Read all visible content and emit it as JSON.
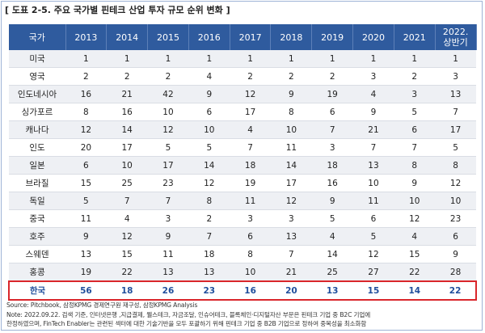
{
  "title": "[ 도표 2-5. 주요 국가별 핀테크 산업 투자 규모 순위 변화 ]",
  "table": {
    "header": [
      "국가",
      "2013",
      "2014",
      "2015",
      "2016",
      "2017",
      "2018",
      "2019",
      "2020",
      "2021",
      "2022.\n상반기"
    ],
    "rows": [
      {
        "country": "미국",
        "values": [
          1,
          1,
          1,
          1,
          1,
          1,
          1,
          1,
          1,
          1
        ]
      },
      {
        "country": "영국",
        "values": [
          2,
          2,
          2,
          4,
          2,
          2,
          2,
          3,
          2,
          3
        ]
      },
      {
        "country": "인도네시아",
        "values": [
          16,
          21,
          42,
          9,
          12,
          9,
          19,
          4,
          3,
          13
        ]
      },
      {
        "country": "싱가포르",
        "values": [
          8,
          16,
          10,
          6,
          17,
          8,
          6,
          9,
          5,
          7
        ]
      },
      {
        "country": "캐나다",
        "values": [
          12,
          14,
          12,
          10,
          4,
          10,
          7,
          21,
          6,
          17
        ]
      },
      {
        "country": "인도",
        "values": [
          20,
          17,
          5,
          5,
          7,
          11,
          3,
          7,
          7,
          5
        ]
      },
      {
        "country": "일본",
        "values": [
          6,
          10,
          17,
          14,
          18,
          14,
          18,
          13,
          8,
          8
        ]
      },
      {
        "country": "브라질",
        "values": [
          15,
          25,
          23,
          12,
          19,
          17,
          16,
          10,
          9,
          12
        ]
      },
      {
        "country": "독일",
        "values": [
          5,
          7,
          7,
          8,
          11,
          12,
          9,
          11,
          10,
          10
        ]
      },
      {
        "country": "중국",
        "values": [
          11,
          4,
          3,
          2,
          3,
          3,
          5,
          6,
          12,
          23
        ]
      },
      {
        "country": "호주",
        "values": [
          9,
          12,
          9,
          7,
          6,
          13,
          4,
          5,
          4,
          6
        ]
      },
      {
        "country": "스웨덴",
        "values": [
          13,
          15,
          11,
          18,
          8,
          7,
          14,
          12,
          15,
          9
        ]
      },
      {
        "country": "홍콩",
        "values": [
          19,
          22,
          13,
          13,
          10,
          21,
          25,
          27,
          22,
          28
        ]
      },
      {
        "country": "한국",
        "values": [
          56,
          18,
          26,
          23,
          16,
          20,
          13,
          15,
          14,
          22
        ]
      }
    ]
  },
  "notes": [
    "Source: Pitchbook, 삼정KPMG 경제연구원 재구성, 삼정KPMG Analysis",
    "Note: 2022.09.22. 검색 기준, 인터넷은행 ,지급결제, 웰스테크, 자금조달, 인슈어테크, 블록체인·디지털자산 부문은 핀테크 기업 중 B2C 기업에",
    "한정하였으며, FinTech Enabler는 관련된 섹터에 대한 기술기반을 모두 포괄하기 위해 핀테크 기업 중 B2B 기업으로 정하여 중복성을 최소화함"
  ]
}
